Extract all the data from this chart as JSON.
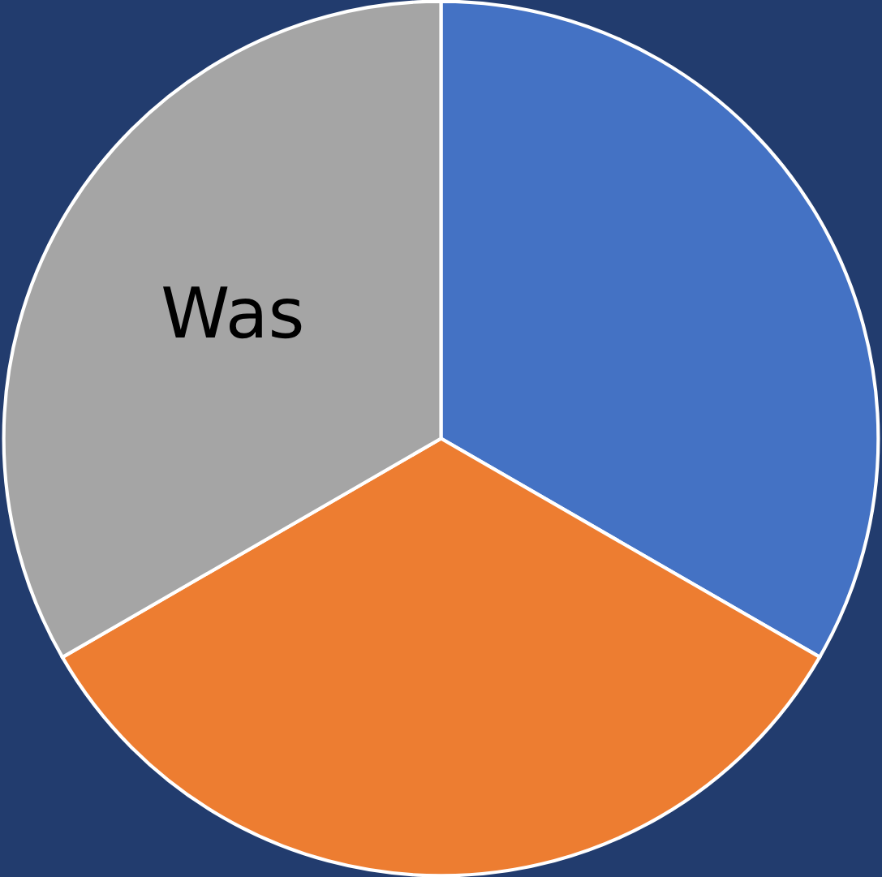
{
  "chart_data": {
    "type": "pie",
    "categories": [
      null,
      null,
      "Was"
    ],
    "values": [
      33.33,
      33.33,
      33.34
    ],
    "colors": [
      "#4472c4",
      "#ed7d31",
      "#a5a5a5"
    ]
  }
}
